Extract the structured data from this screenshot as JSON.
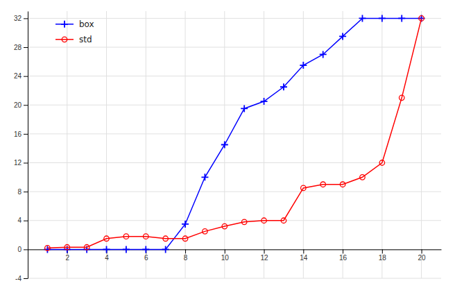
{
  "chart_data": {
    "type": "line",
    "x": [
      1,
      2,
      3,
      4,
      5,
      6,
      7,
      8,
      9,
      10,
      11,
      12,
      13,
      14,
      15,
      16,
      17,
      18,
      19,
      20
    ],
    "series": [
      {
        "name": "box",
        "color": "#0000ff",
        "marker": "plus",
        "values": [
          0,
          0,
          0,
          0,
          0,
          0,
          0,
          3.5,
          10,
          14.5,
          19.5,
          20.5,
          22.5,
          25.5,
          27,
          29.5,
          32,
          32,
          32,
          32
        ]
      },
      {
        "name": "std",
        "color": "#ff0000",
        "marker": "circle",
        "values": [
          0.2,
          0.3,
          0.3,
          1.5,
          1.8,
          1.8,
          1.5,
          1.5,
          2.5,
          3.2,
          3.8,
          4.0,
          4.0,
          8.5,
          9.0,
          9.0,
          10.0,
          12.0,
          21.0,
          32.0
        ]
      }
    ],
    "xlim": [
      0,
      21
    ],
    "ylim": [
      -4,
      33
    ],
    "xticks": [
      2,
      4,
      6,
      8,
      10,
      12,
      14,
      16,
      18,
      20
    ],
    "yticks": [
      -4,
      0,
      4,
      8,
      12,
      16,
      20,
      24,
      28,
      32
    ],
    "grid": true,
    "legend": "upper left"
  }
}
